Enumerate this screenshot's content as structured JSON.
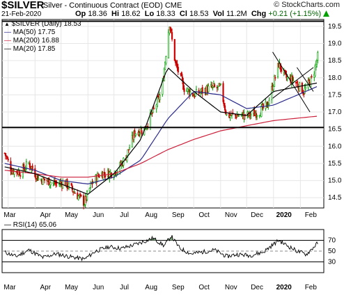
{
  "header": {
    "ticker": "$SILVER",
    "subtitle": "Silver - Continuous Contract (EOD)",
    "exchange": "CME",
    "brand": "© StockCharts.com",
    "date": "21-Feb-2020",
    "open_label": "Op",
    "open": "18.36",
    "high_label": "Hi",
    "high": "18.62",
    "low_label": "Lo",
    "low": "18.33",
    "close_label": "Cl",
    "close": "18.53",
    "vol_label": "Vol",
    "vol": "11.2M",
    "chg_label": "Chg",
    "chg": "+0.21 (+1.15%)",
    "chg_icon": "up-arrow-icon"
  },
  "legend": {
    "price": "$SILVER (Daily) 18.53",
    "ma50": "MA(50) 17.75",
    "ma200": "MA(200) 16.88",
    "ma20": "MA(20) 17.85"
  },
  "colors": {
    "ma50": "#2b2b8c",
    "ma200": "#cc1f3a",
    "ma20": "#000000",
    "up": "#00a000",
    "down": "#cc0000",
    "rsi_fill": "#7fa87f"
  },
  "rsi_label": "RSI(14) 65.06",
  "chart_data": [
    {
      "type": "candlestick",
      "title": "$SILVER (Daily)",
      "x_labels": [
        "Mar",
        "Apr",
        "May",
        "Jun",
        "Jul",
        "Aug",
        "Sep",
        "Oct",
        "Nov",
        "Dec",
        "2020",
        "Feb"
      ],
      "y_ticks": [
        "14.5",
        "15.0",
        "15.5",
        "16.0",
        "16.5",
        "17.0",
        "17.5",
        "18.0",
        "18.5",
        "19.0",
        "19.5"
      ],
      "ylim": [
        14.2,
        19.7
      ],
      "price_path": {
        "x": [
          "2019-02-25",
          "2019-03-05",
          "2019-03-15",
          "2019-03-25",
          "2019-04-05",
          "2019-04-15",
          "2019-04-25",
          "2019-05-05",
          "2019-05-15",
          "2019-05-28",
          "2019-06-05",
          "2019-06-15",
          "2019-06-25",
          "2019-07-05",
          "2019-07-15",
          "2019-07-25",
          "2019-08-05",
          "2019-08-15",
          "2019-08-25",
          "2019-09-03",
          "2019-09-10",
          "2019-09-20",
          "2019-10-01",
          "2019-10-10",
          "2019-10-20",
          "2019-11-01",
          "2019-11-08",
          "2019-11-20",
          "2019-12-02",
          "2019-12-15",
          "2019-12-25",
          "2020-01-07",
          "2020-01-15",
          "2020-01-25",
          "2020-02-05",
          "2020-02-15",
          "2020-02-21"
        ],
        "y": [
          15.8,
          15.3,
          15.25,
          15.5,
          15.05,
          15.0,
          14.9,
          14.95,
          14.7,
          14.35,
          14.9,
          15.2,
          15.2,
          15.3,
          15.7,
          16.4,
          16.5,
          17.0,
          17.6,
          19.6,
          18.4,
          17.7,
          17.5,
          17.6,
          17.7,
          17.7,
          16.9,
          16.9,
          16.9,
          17.0,
          17.2,
          18.4,
          18.0,
          17.9,
          17.6,
          18.0,
          18.6
        ]
      },
      "series": [
        {
          "name": "MA(50)",
          "x": [
            "2019-02-25",
            "2019-04-01",
            "2019-05-01",
            "2019-06-01",
            "2019-07-01",
            "2019-08-01",
            "2019-09-01",
            "2019-10-01",
            "2019-11-01",
            "2019-12-01",
            "2020-01-01",
            "2020-02-21"
          ],
          "y": [
            15.5,
            15.3,
            15.0,
            14.9,
            15.1,
            15.6,
            16.8,
            17.6,
            17.5,
            17.1,
            17.2,
            17.75
          ]
        },
        {
          "name": "MA(200)",
          "x": [
            "2019-02-25",
            "2019-04-01",
            "2019-05-01",
            "2019-06-01",
            "2019-07-01",
            "2019-08-01",
            "2019-09-01",
            "2019-10-01",
            "2019-11-01",
            "2019-12-01",
            "2020-01-01",
            "2020-02-21"
          ],
          "y": [
            15.3,
            15.2,
            15.1,
            15.1,
            15.2,
            15.5,
            15.9,
            16.2,
            16.45,
            16.6,
            16.75,
            16.88
          ]
        },
        {
          "name": "MA(20)",
          "x": [
            "2019-02-25",
            "2019-04-01",
            "2019-05-01",
            "2019-06-01",
            "2019-07-01",
            "2019-08-01",
            "2019-09-01",
            "2019-10-01",
            "2019-11-01",
            "2019-12-01",
            "2020-01-01",
            "2020-02-21"
          ],
          "y": [
            15.4,
            15.2,
            14.9,
            14.6,
            15.2,
            16.2,
            18.3,
            17.6,
            17.0,
            16.9,
            17.6,
            17.85
          ]
        }
      ],
      "horizontal_lines": [
        19.65,
        16.55
      ],
      "trendlines": [
        {
          "x": [
            "2019-12-31",
            "2020-02-12"
          ],
          "y": [
            18.75,
            17.0
          ]
        },
        {
          "x": [
            "2019-12-31",
            "2020-02-16"
          ],
          "y": [
            17.4,
            18.3
          ]
        },
        {
          "x": [
            "2020-01-28",
            "2020-02-16"
          ],
          "y": [
            18.3,
            17.6
          ]
        }
      ]
    },
    {
      "type": "line",
      "title": "RSI(14)",
      "x_labels": [
        "Mar",
        "Apr",
        "May",
        "Jun",
        "Jul",
        "Aug",
        "Sep",
        "Oct",
        "Nov",
        "Dec",
        "2020",
        "Feb"
      ],
      "y_ticks": [
        "30",
        "50",
        "70"
      ],
      "ylim": [
        10,
        90
      ],
      "reference_lines": [
        30,
        50,
        70
      ],
      "x": [
        "2019-02-25",
        "2019-03-10",
        "2019-03-25",
        "2019-04-10",
        "2019-04-25",
        "2019-05-10",
        "2019-05-28",
        "2019-06-10",
        "2019-06-25",
        "2019-07-10",
        "2019-07-25",
        "2019-08-05",
        "2019-08-15",
        "2019-08-28",
        "2019-09-05",
        "2019-09-15",
        "2019-09-28",
        "2019-10-10",
        "2019-10-25",
        "2019-11-08",
        "2019-11-20",
        "2019-12-05",
        "2019-12-20",
        "2020-01-07",
        "2020-01-15",
        "2020-01-28",
        "2020-02-08",
        "2020-02-21"
      ],
      "values": [
        48,
        40,
        52,
        38,
        45,
        40,
        35,
        50,
        58,
        55,
        62,
        68,
        74,
        60,
        78,
        55,
        45,
        48,
        52,
        40,
        44,
        42,
        48,
        70,
        62,
        50,
        44,
        65
      ]
    }
  ]
}
